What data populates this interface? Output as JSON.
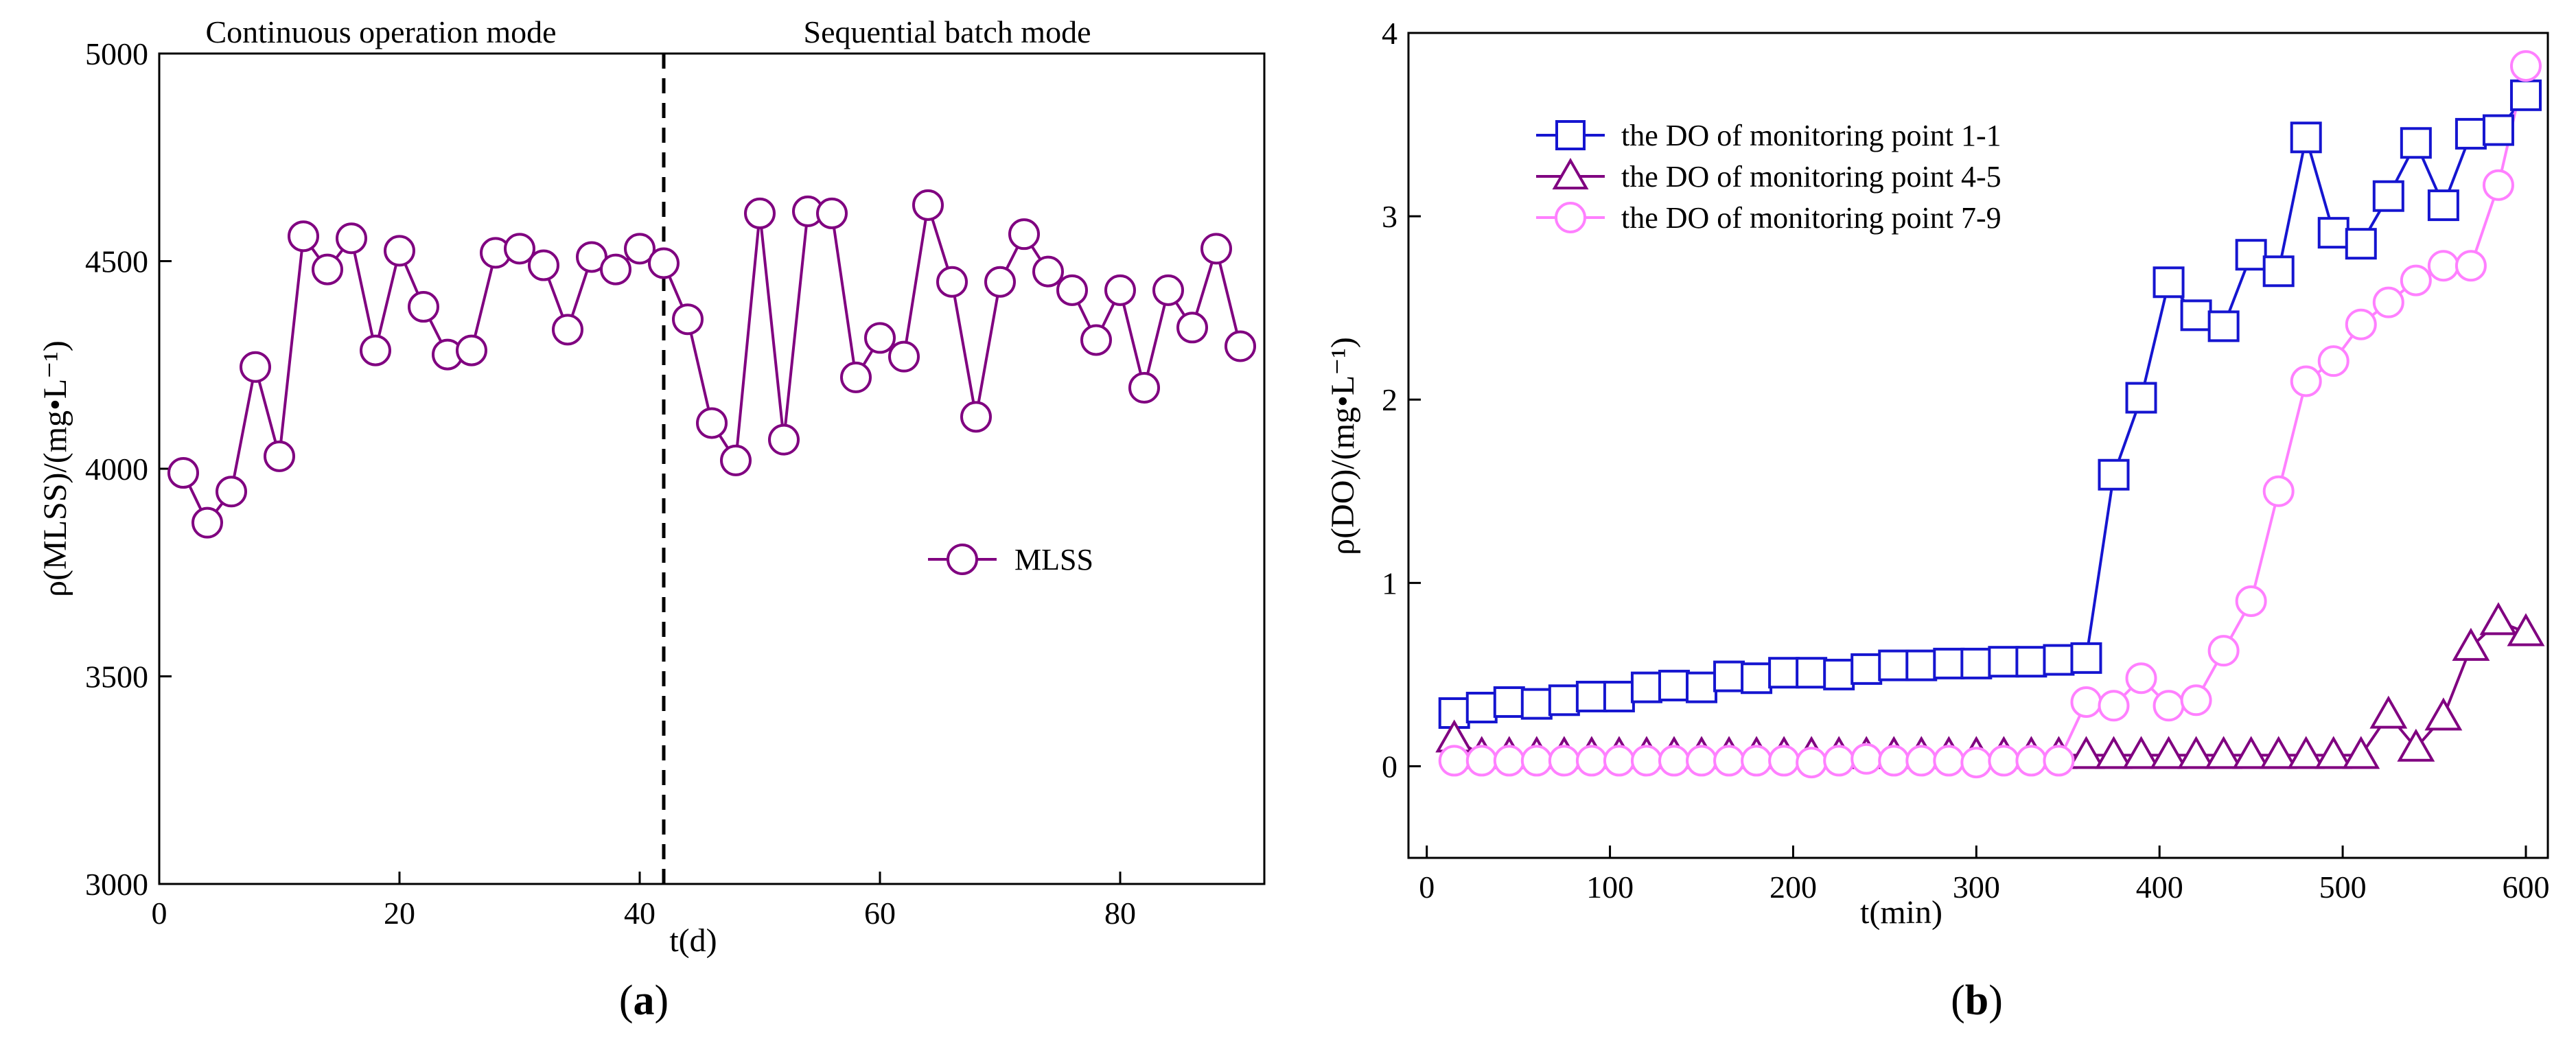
{
  "chart_data": [
    {
      "id": "a",
      "type": "line",
      "caption_letter": "a",
      "xlabel": "t(d)",
      "ylabel": "ρ(MLSS)/(mg•L⁻¹)",
      "xlim": [
        0,
        92
      ],
      "ylim": [
        3000,
        5000
      ],
      "xticks": [
        0,
        20,
        40,
        60,
        80
      ],
      "yticks": [
        3000,
        3500,
        4000,
        4500,
        5000
      ],
      "divider_x": 42,
      "phase_labels": [
        "Continuous operation mode",
        "Sequential batch mode"
      ],
      "series": [
        {
          "name": "MLSS",
          "marker": "circle",
          "color": "#800080",
          "x": [
            2,
            4,
            6,
            8,
            10,
            12,
            14,
            16,
            18,
            20,
            22,
            24,
            26,
            28,
            30,
            32,
            34,
            36,
            38,
            40,
            42,
            44,
            46,
            48,
            50,
            52,
            54,
            56,
            58,
            60,
            62,
            64,
            66,
            68,
            70,
            72,
            74,
            76,
            78,
            80,
            82,
            84,
            86,
            88,
            90
          ],
          "y": [
            3990,
            3870,
            3945,
            4245,
            4030,
            4560,
            4480,
            4555,
            4285,
            4525,
            4390,
            4275,
            4285,
            4520,
            4530,
            4490,
            4335,
            4510,
            4480,
            4530,
            4495,
            4360,
            4110,
            4020,
            4615,
            4070,
            4620,
            4615,
            4220,
            4315,
            4270,
            4635,
            4450,
            4125,
            4450,
            4565,
            4475,
            4430,
            4310,
            4430,
            4195,
            4430,
            4340,
            4530,
            4295
          ]
        }
      ]
    },
    {
      "id": "b",
      "type": "line",
      "caption_letter": "b",
      "xlabel": "t(min)",
      "ylabel": "ρ(DO)/(mg•L⁻¹)",
      "xlim": [
        -10,
        612
      ],
      "ylim": [
        -0.5,
        4
      ],
      "xticks": [
        0,
        100,
        200,
        300,
        400,
        500,
        600
      ],
      "yticks": [
        0,
        1,
        2,
        3,
        4
      ],
      "series": [
        {
          "name": "the DO of monitoring point 1-1",
          "marker": "square",
          "color": "#1515d0",
          "x": [
            15,
            30,
            45,
            60,
            75,
            90,
            105,
            120,
            135,
            150,
            165,
            180,
            195,
            210,
            225,
            240,
            255,
            270,
            285,
            300,
            315,
            330,
            345,
            360,
            375,
            390,
            405,
            420,
            435,
            450,
            465,
            480,
            495,
            510,
            525,
            540,
            555,
            570,
            585,
            600
          ],
          "y": [
            0.29,
            0.32,
            0.35,
            0.34,
            0.36,
            0.38,
            0.38,
            0.43,
            0.44,
            0.43,
            0.49,
            0.48,
            0.51,
            0.51,
            0.5,
            0.53,
            0.55,
            0.55,
            0.56,
            0.56,
            0.57,
            0.57,
            0.58,
            0.59,
            1.59,
            2.01,
            2.64,
            2.46,
            2.4,
            2.79,
            2.7,
            3.43,
            2.91,
            2.85,
            3.11,
            3.4,
            3.06,
            3.45,
            3.47,
            3.66
          ]
        },
        {
          "name": "the DO of monitoring point 4-5",
          "marker": "triangle",
          "color": "#800080",
          "x": [
            15,
            30,
            45,
            60,
            75,
            90,
            105,
            120,
            135,
            150,
            165,
            180,
            195,
            210,
            225,
            240,
            255,
            270,
            285,
            300,
            315,
            330,
            345,
            360,
            375,
            390,
            405,
            420,
            435,
            450,
            465,
            480,
            495,
            510,
            525,
            540,
            555,
            570,
            585,
            600
          ],
          "y": [
            0.15,
            0.06,
            0.06,
            0.06,
            0.06,
            0.06,
            0.06,
            0.06,
            0.06,
            0.06,
            0.06,
            0.06,
            0.06,
            0.06,
            0.06,
            0.06,
            0.06,
            0.06,
            0.06,
            0.06,
            0.06,
            0.06,
            0.06,
            0.06,
            0.06,
            0.06,
            0.06,
            0.06,
            0.06,
            0.06,
            0.06,
            0.06,
            0.06,
            0.06,
            0.28,
            0.1,
            0.27,
            0.65,
            0.79,
            0.73
          ]
        },
        {
          "name": "the DO of monitoring point 7-9",
          "marker": "circle",
          "color": "#ff80ff",
          "x": [
            15,
            30,
            45,
            60,
            75,
            90,
            105,
            120,
            135,
            150,
            165,
            180,
            195,
            210,
            225,
            240,
            255,
            270,
            285,
            300,
            315,
            330,
            345,
            360,
            375,
            390,
            405,
            420,
            435,
            450,
            465,
            480,
            495,
            510,
            525,
            540,
            555,
            570,
            585,
            600
          ],
          "y": [
            0.03,
            0.03,
            0.03,
            0.03,
            0.03,
            0.03,
            0.03,
            0.03,
            0.03,
            0.03,
            0.03,
            0.03,
            0.03,
            0.02,
            0.03,
            0.04,
            0.03,
            0.03,
            0.03,
            0.02,
            0.03,
            0.03,
            0.03,
            0.35,
            0.33,
            0.48,
            0.33,
            0.36,
            0.63,
            0.9,
            1.5,
            2.1,
            2.21,
            2.41,
            2.53,
            2.65,
            2.73,
            2.73,
            3.17,
            3.82
          ]
        }
      ]
    }
  ]
}
